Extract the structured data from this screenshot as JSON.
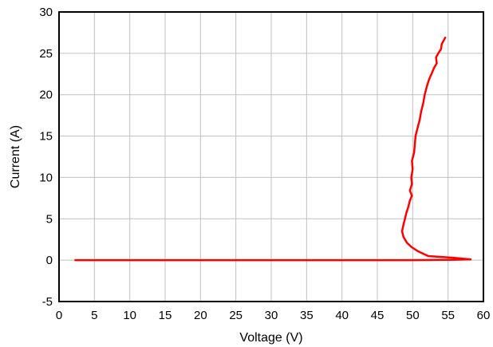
{
  "chart_data": {
    "type": "line",
    "title": "",
    "xlabel": "Voltage (V)",
    "ylabel": "Current (A)",
    "xlim": [
      0,
      60
    ],
    "ylim": [
      -5,
      30
    ],
    "xticks": [
      0,
      5,
      10,
      15,
      20,
      25,
      30,
      35,
      40,
      45,
      50,
      55,
      60
    ],
    "yticks": [
      -5,
      0,
      5,
      10,
      15,
      20,
      25,
      30
    ],
    "grid": true,
    "legend": "none",
    "series": [
      {
        "color": "#ff0000",
        "points": [
          [
            2.3,
            0.0
          ],
          [
            10,
            0.0
          ],
          [
            20,
            0.0
          ],
          [
            30,
            0.0
          ],
          [
            40,
            0.0
          ],
          [
            50,
            0.0
          ],
          [
            56,
            0.05
          ],
          [
            58.2,
            0.1
          ],
          [
            55.5,
            0.3
          ],
          [
            52.2,
            0.5
          ],
          [
            50.7,
            1.1
          ],
          [
            49.8,
            1.6
          ],
          [
            49.2,
            2.1
          ],
          [
            48.7,
            2.8
          ],
          [
            48.5,
            3.5
          ],
          [
            48.7,
            4.3
          ],
          [
            48.9,
            5.0
          ],
          [
            49.1,
            5.7
          ],
          [
            49.4,
            6.5
          ],
          [
            49.6,
            7.2
          ],
          [
            49.9,
            7.8
          ],
          [
            49.6,
            8.4
          ],
          [
            49.9,
            9.2
          ],
          [
            49.8,
            10.0
          ],
          [
            50.0,
            11.0
          ],
          [
            49.9,
            12.0
          ],
          [
            50.2,
            13.0
          ],
          [
            50.3,
            14.0
          ],
          [
            50.4,
            15.0
          ],
          [
            50.7,
            16.0
          ],
          [
            51.0,
            17.0
          ],
          [
            51.2,
            18.0
          ],
          [
            51.5,
            19.0
          ],
          [
            51.7,
            20.0
          ],
          [
            52.0,
            21.0
          ],
          [
            52.3,
            21.8
          ],
          [
            52.7,
            22.6
          ],
          [
            53.0,
            23.2
          ],
          [
            53.4,
            23.8
          ],
          [
            53.3,
            24.5
          ],
          [
            53.6,
            25.0
          ],
          [
            54.0,
            25.5
          ],
          [
            54.1,
            26.1
          ],
          [
            54.6,
            26.9
          ]
        ]
      }
    ]
  }
}
